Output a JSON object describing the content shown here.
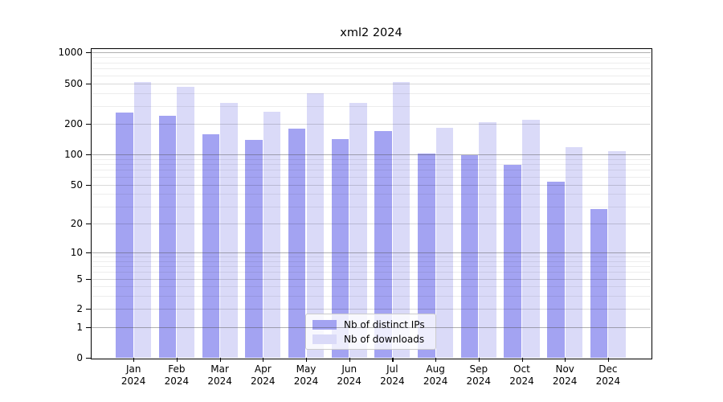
{
  "chart_data": {
    "type": "bar",
    "title": "xml2 2024",
    "categories": [
      "Jan",
      "Feb",
      "Mar",
      "Apr",
      "May",
      "Jun",
      "Jul",
      "Aug",
      "Sep",
      "Oct",
      "Nov",
      "Dec"
    ],
    "year_label": "2024",
    "series": [
      {
        "name": "Nb of distinct IPs",
        "color": "#a3a3f2",
        "values": [
          260,
          240,
          158,
          140,
          178,
          141,
          169,
          102,
          99,
          78,
          53,
          28
        ]
      },
      {
        "name": "Nb of downloads",
        "color": "#dadaf8",
        "values": [
          520,
          467,
          320,
          262,
          400,
          322,
          516,
          183,
          206,
          218,
          118,
          107
        ]
      }
    ],
    "y_axis": {
      "scale": "log",
      "tick_values": [
        0,
        1,
        2,
        5,
        10,
        20,
        50,
        100,
        200,
        500,
        1000
      ],
      "tick_labels": [
        "0",
        "1",
        "2",
        "5",
        "10",
        "20",
        "50",
        "100",
        "200",
        "500",
        "1000"
      ],
      "ylim": [
        0,
        1000
      ]
    },
    "grid": true,
    "legend_position": "bottom-center"
  }
}
